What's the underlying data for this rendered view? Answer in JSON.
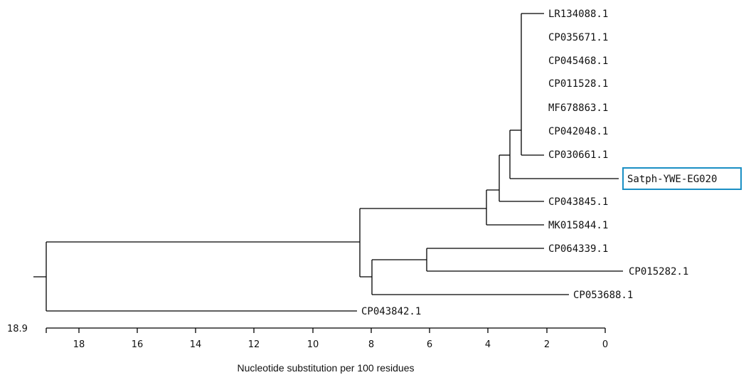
{
  "tree": {
    "axis_label": "Nucleotide substitution per 100 residues",
    "root_label": "18.9",
    "highlight_color": "#1a8fc4",
    "axis_ticks": [
      "18",
      "16",
      "14",
      "12",
      "10",
      "8",
      "6",
      "4",
      "2",
      "0"
    ],
    "taxa": [
      {
        "name": "LR134088.1",
        "highlighted": false
      },
      {
        "name": "CP035671.1",
        "highlighted": false
      },
      {
        "name": "CP045468.1",
        "highlighted": false
      },
      {
        "name": "CP011528.1",
        "highlighted": false
      },
      {
        "name": "MF678863.1",
        "highlighted": false
      },
      {
        "name": "CP042048.1",
        "highlighted": false
      },
      {
        "name": "CP030661.1",
        "highlighted": false
      },
      {
        "name": "Satph-YWE-EG020",
        "highlighted": true
      },
      {
        "name": "CP043845.1",
        "highlighted": false
      },
      {
        "name": "MK015844.1",
        "highlighted": false
      },
      {
        "name": "CP064339.1",
        "highlighted": false
      },
      {
        "name": "CP015282.1",
        "highlighted": false
      },
      {
        "name": "CP053688.1",
        "highlighted": false
      },
      {
        "name": "CP043842.1",
        "highlighted": false
      }
    ]
  }
}
